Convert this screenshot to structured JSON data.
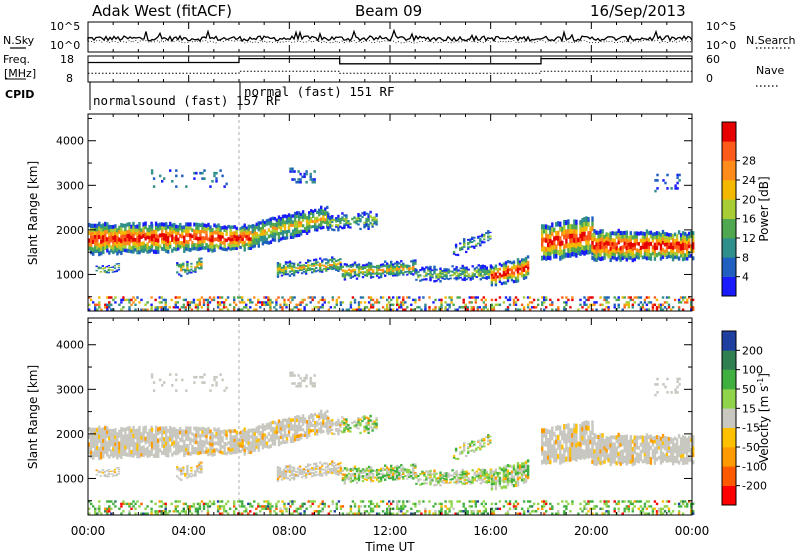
{
  "header": {
    "station": "Adak West (fitACF)",
    "beam": "Beam 09",
    "date": "16/Sep/2013"
  },
  "side_labels": {
    "nsky": "N.Sky",
    "nsearch": "N.Search",
    "freq": "Freq.",
    "freq_unit": "[MHz]",
    "nave": "Nave",
    "cpid": "CPID"
  },
  "cpid_labels": [
    "normalsound (fast) 157 RF",
    "normal (fast) 151 RF"
  ],
  "colors": {
    "power": [
      "#1a1aff",
      "#1f5fbf",
      "#2f8f8a",
      "#4fa84f",
      "#a8cc33",
      "#f5b800",
      "#ff8c1a",
      "#ff5a1a",
      "#e60000"
    ],
    "velocity": [
      "#ff0000",
      "#ff5a00",
      "#ff9a00",
      "#ffc000",
      "#c8c8c0",
      "#8fd44a",
      "#3fb03f",
      "#2f7f50",
      "#1f3fa0"
    ]
  },
  "chart_data": [
    {
      "type": "line",
      "panel": "noise",
      "ylabel_left": "N.Sky",
      "ylabel_right": "N.Search",
      "left_ticks": [
        "10^5",
        "10^0"
      ],
      "right_ticks": [
        "10^5",
        "10^0"
      ],
      "xlim": [
        0,
        24
      ]
    },
    {
      "type": "line",
      "panel": "frequency",
      "ylabel_left": "Freq. [MHz]",
      "ylabel_right": "Nave",
      "left_ticks": [
        18,
        8
      ],
      "right_ticks": [
        60,
        0
      ],
      "ylim_left": [
        8,
        18
      ],
      "ylim_right": [
        0,
        60
      ],
      "freq_segments": [
        {
          "x0": 0,
          "x1": 6,
          "value": 15.5
        },
        {
          "x0": 6,
          "x1": 10,
          "value": 17.0
        },
        {
          "x0": 10,
          "x1": 18,
          "value": 15.0
        },
        {
          "x0": 18,
          "x1": 24,
          "value": 17.0
        }
      ],
      "nave_segments": [
        {
          "x0": 0,
          "x1": 6,
          "value": 20
        },
        {
          "x0": 6,
          "x1": 10,
          "value": 25
        },
        {
          "x0": 10,
          "x1": 18,
          "value": 20
        },
        {
          "x0": 18,
          "x1": 24,
          "value": 25
        }
      ]
    },
    {
      "type": "heatmap",
      "panel": "power",
      "ylabel": "Slant Range [km]",
      "xlim": [
        0,
        24
      ],
      "ylim": [
        180,
        4600
      ],
      "y_ticks": [
        1000,
        2000,
        3000,
        4000
      ],
      "colorbar_label": "Power [dB]",
      "colorbar_ticks": [
        4,
        8,
        12,
        16,
        20,
        24,
        28
      ],
      "colorbar_range": [
        0,
        32
      ]
    },
    {
      "type": "heatmap",
      "panel": "velocity",
      "ylabel": "Slant Range [km]",
      "xlabel": "Time UT",
      "xlim": [
        0,
        24
      ],
      "ylim": [
        180,
        4600
      ],
      "y_ticks": [
        1000,
        2000,
        3000,
        4000
      ],
      "x_ticks": [
        0,
        4,
        8,
        12,
        16,
        20,
        24
      ],
      "x_tick_labels": [
        "00:00",
        "04:00",
        "08:00",
        "12:00",
        "16:00",
        "20:00",
        "00:00"
      ],
      "colorbar_label": "Velocity [m s",
      "colorbar_label_sup": "-1",
      "colorbar_label_end": "]",
      "colorbar_ticks": [
        -200,
        -100,
        -50,
        -15,
        15,
        50,
        100,
        200
      ]
    }
  ]
}
